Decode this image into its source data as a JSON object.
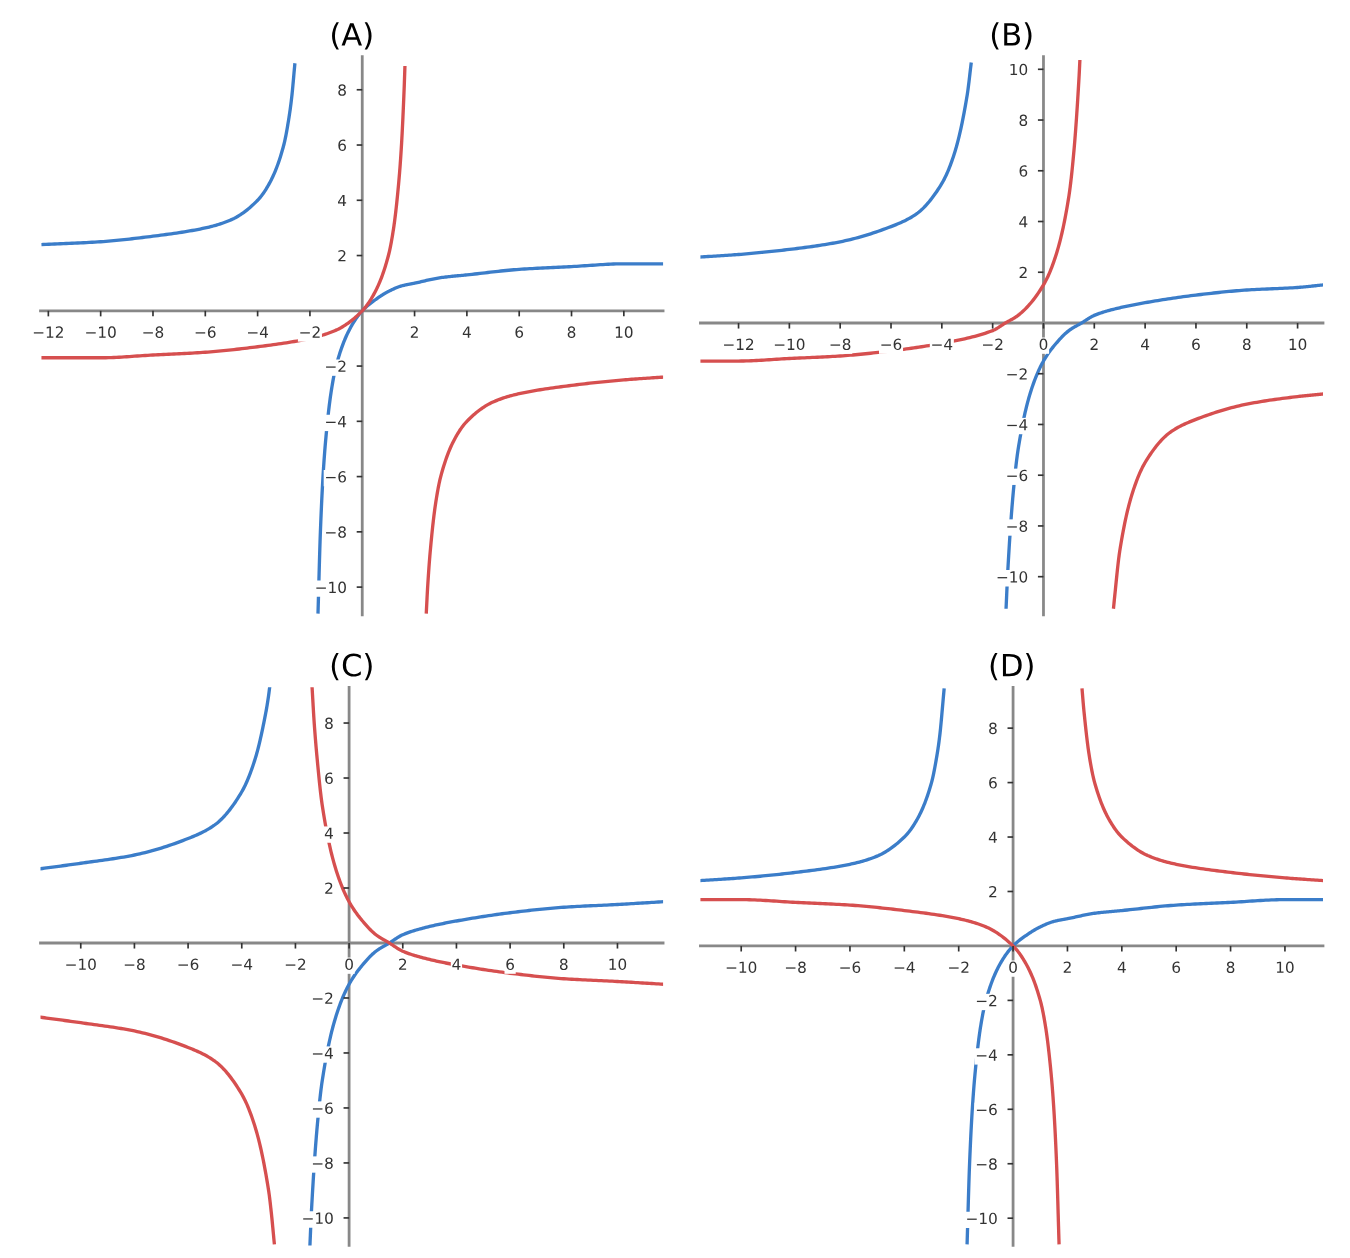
{
  "chart_data": [
    {
      "type": "line",
      "title": "(A)",
      "xlim": [
        -12.3,
        11.5
      ],
      "ylim": [
        -11,
        9.2
      ],
      "xticks": [
        -12,
        -10,
        -8,
        -6,
        -4,
        -2,
        2,
        4,
        6,
        8,
        10
      ],
      "yticks": [
        -10,
        -8,
        -6,
        -4,
        -2,
        2,
        4,
        6,
        8
      ],
      "grid": false,
      "series": [
        {
          "color": "#3b7dc9",
          "x": [
            -12.2,
            -10,
            -8,
            -6,
            -5,
            -4,
            -3.5,
            -3,
            -2.8,
            -2.7,
            -2.58
          ],
          "values": [
            2.4,
            2.5,
            2.7,
            3,
            3.3,
            4,
            4.7,
            6,
            7,
            7.7,
            8.9
          ]
        },
        {
          "color": "#3b7dc9",
          "x": [
            -1.69,
            -1.6,
            -1.5,
            -1.4,
            -1.2,
            -1,
            -0.5,
            0,
            0.5,
            1,
            1.5,
            2,
            3,
            4,
            6,
            8,
            10,
            11.5
          ],
          "values": [
            -10.9,
            -8,
            -6,
            -4.7,
            -3,
            -2,
            -0.7,
            0,
            0.4,
            0.7,
            0.9,
            1,
            1.2,
            1.3,
            1.5,
            1.6,
            1.7,
            1.7
          ]
        },
        {
          "color": "#d64f4f",
          "x": [
            -12.2,
            -10,
            -8,
            -6,
            -4,
            -2,
            -1,
            0,
            0.5,
            1,
            1.2,
            1.4,
            1.5,
            1.6,
            1.63
          ],
          "values": [
            -1.7,
            -1.7,
            -1.6,
            -1.5,
            -1.3,
            -1,
            -0.7,
            0,
            0.7,
            2,
            3,
            4.7,
            6,
            8,
            8.8
          ]
        },
        {
          "color": "#d64f4f",
          "x": [
            2.45,
            2.5,
            2.6,
            2.8,
            3,
            3.5,
            4,
            5,
            6,
            8,
            10,
            11.5
          ],
          "values": [
            -10.9,
            -10,
            -8.7,
            -7,
            -6,
            -4.7,
            -4,
            -3.3,
            -3,
            -2.7,
            -2.5,
            -2.4
          ]
        }
      ]
    },
    {
      "type": "line",
      "title": "(B)",
      "xlim": [
        -13.5,
        11
      ],
      "ylim": [
        -11.5,
        10.5
      ],
      "xticks": [
        -12,
        -10,
        -8,
        -6,
        -4,
        -2,
        0,
        2,
        4,
        6,
        8,
        10
      ],
      "yticks": [
        -10,
        -8,
        -6,
        -4,
        -2,
        2,
        4,
        6,
        8,
        10
      ],
      "grid": false,
      "series": [
        {
          "color": "#3b7dc9",
          "x": [
            -13.5,
            -12,
            -10,
            -8,
            -6,
            -5,
            -4,
            -3.5,
            -3,
            -2.85
          ],
          "values": [
            2.6,
            2.7,
            2.9,
            3.2,
            3.8,
            4.3,
            5.5,
            6.7,
            9,
            10.2
          ]
        },
        {
          "color": "#3b7dc9",
          "x": [
            -1.47,
            -1.4,
            -1.2,
            -1,
            -0.5,
            0,
            0.5,
            1,
            1.5,
            2,
            3,
            4,
            6,
            8,
            10,
            11
          ],
          "values": [
            -11.2,
            -9.7,
            -6.8,
            -5,
            -2.7,
            -1.5,
            -0.8,
            -0.3,
            0,
            0.3,
            0.6,
            0.8,
            1.1,
            1.3,
            1.4,
            1.5
          ]
        },
        {
          "color": "#d64f4f",
          "x": [
            -13.5,
            -12,
            -10,
            -8,
            -6,
            -4,
            -2,
            -1.5,
            -1,
            0,
            0.5,
            1,
            1.2,
            1.4,
            1.43
          ],
          "values": [
            -1.5,
            -1.5,
            -1.4,
            -1.3,
            -1.1,
            -0.8,
            -0.3,
            0,
            0.3,
            1.5,
            2.7,
            5,
            6.8,
            9.7,
            10.3
          ]
        },
        {
          "color": "#d64f4f",
          "x": [
            2.76,
            2.8,
            3,
            3.5,
            4,
            5,
            6,
            8,
            10,
            11
          ],
          "values": [
            -11.2,
            -10.8,
            -9,
            -6.7,
            -5.5,
            -4.3,
            -3.8,
            -3.2,
            -2.9,
            -2.8
          ]
        }
      ]
    },
    {
      "type": "line",
      "title": "(C)",
      "xlim": [
        -11.5,
        11.7
      ],
      "ylim": [
        -11,
        9.3
      ],
      "xticks": [
        -10,
        -8,
        -6,
        -4,
        -2,
        0,
        2,
        4,
        6,
        8,
        10
      ],
      "yticks": [
        -10,
        -8,
        -6,
        -4,
        -2,
        2,
        4,
        6,
        8
      ],
      "grid": false,
      "series": [
        {
          "color": "#3b7dc9",
          "x": [
            -11.5,
            -10,
            -8,
            -6,
            -5,
            -4,
            -3.5,
            -3.1,
            -3,
            -2.96
          ],
          "values": [
            2.7,
            2.9,
            3.2,
            3.8,
            4.3,
            5.5,
            6.7,
            8.4,
            9,
            9.3
          ]
        },
        {
          "color": "#3b7dc9",
          "x": [
            -1.46,
            -1.4,
            -1.2,
            -1,
            -0.5,
            0,
            0.5,
            1,
            1.5,
            2,
            3,
            4,
            6,
            8,
            10,
            11.7
          ],
          "values": [
            -11,
            -9.7,
            -6.8,
            -5,
            -2.7,
            -1.5,
            -0.8,
            -0.3,
            0,
            0.3,
            0.6,
            0.8,
            1.1,
            1.3,
            1.4,
            1.5
          ]
        },
        {
          "color": "#d64f4f",
          "x": [
            -11.5,
            -10,
            -8,
            -6,
            -5,
            -4,
            -3.5,
            -3,
            -2.9,
            -2.79
          ],
          "values": [
            -2.7,
            -2.9,
            -3.2,
            -3.8,
            -4.3,
            -5.5,
            -6.7,
            -9,
            -9.8,
            -10.9
          ]
        },
        {
          "color": "#d64f4f",
          "x": [
            -1.38,
            -1.3,
            -1.2,
            -1,
            -0.5,
            0,
            0.5,
            1,
            1.5,
            2,
            3,
            4,
            6,
            8,
            10,
            11.7
          ],
          "values": [
            9.3,
            8,
            6.8,
            5,
            2.7,
            1.5,
            0.8,
            0.3,
            0,
            -0.3,
            -0.6,
            -0.8,
            -1.1,
            -1.3,
            -1.4,
            -1.5
          ]
        }
      ]
    },
    {
      "type": "line",
      "title": "(D)",
      "xlim": [
        -11.5,
        11.4
      ],
      "ylim": [
        -11,
        9.5
      ],
      "xticks": [
        -10,
        -8,
        -6,
        -4,
        -2,
        0,
        2,
        4,
        6,
        8,
        10
      ],
      "yticks": [
        -10,
        -8,
        -6,
        -4,
        -2,
        2,
        4,
        6,
        8
      ],
      "grid": false,
      "series": [
        {
          "color": "#3b7dc9",
          "x": [
            -11.5,
            -10,
            -8,
            -6,
            -5,
            -4,
            -3.5,
            -3,
            -2.8,
            -2.7,
            -2.54
          ],
          "values": [
            2.4,
            2.5,
            2.7,
            3,
            3.3,
            4,
            4.7,
            6,
            7,
            7.7,
            9.4
          ]
        },
        {
          "color": "#3b7dc9",
          "x": [
            -1.69,
            -1.6,
            -1.5,
            -1.4,
            -1.2,
            -1,
            -0.5,
            0,
            0.5,
            1,
            1.5,
            2,
            3,
            4,
            6,
            8,
            10,
            11.4
          ],
          "values": [
            -10.9,
            -8,
            -6,
            -4.7,
            -3,
            -2,
            -0.7,
            0,
            0.4,
            0.7,
            0.9,
            1,
            1.2,
            1.3,
            1.5,
            1.6,
            1.7,
            1.7
          ]
        },
        {
          "color": "#d64f4f",
          "x": [
            -11.5,
            -10,
            -8,
            -6,
            -4,
            -2,
            -1,
            0,
            0.5,
            1,
            1.2,
            1.4,
            1.5,
            1.6,
            1.69
          ],
          "values": [
            1.7,
            1.7,
            1.6,
            1.5,
            1.3,
            1,
            0.7,
            0,
            -0.7,
            -2,
            -3,
            -4.7,
            -6,
            -8,
            -10.9
          ]
        },
        {
          "color": "#d64f4f",
          "x": [
            2.54,
            2.6,
            2.8,
            3,
            3.5,
            4,
            5,
            6,
            8,
            10,
            11.4
          ],
          "values": [
            9.4,
            8.7,
            7,
            6,
            4.7,
            4,
            3.3,
            3,
            2.7,
            2.5,
            2.4
          ]
        }
      ]
    }
  ]
}
